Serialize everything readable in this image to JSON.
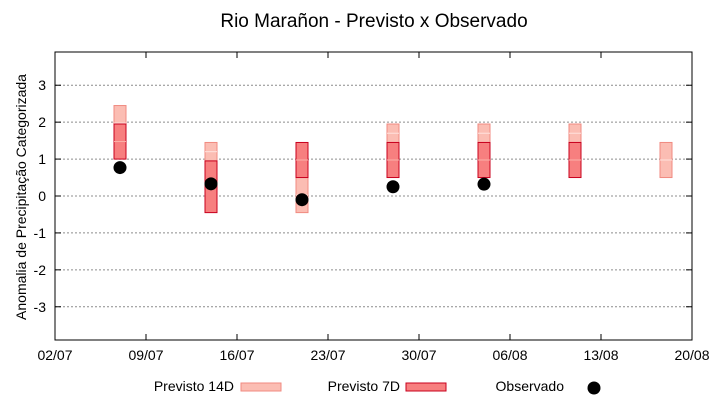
{
  "chart_data": {
    "type": "range-bar",
    "title": "Rio Marañon - Previsto x Observado",
    "xlabel": "",
    "ylabel": "Anomalia de Precipitação Categorizada",
    "ylim": [
      -3.9,
      3.9
    ],
    "yticks": [
      -3,
      -2,
      -1,
      0,
      1,
      2,
      3
    ],
    "xlim": [
      "2024-07-02",
      "2024-08-20"
    ],
    "xticks": [
      "02/07",
      "09/07",
      "16/07",
      "23/07",
      "30/07",
      "06/08",
      "13/08",
      "20/08"
    ],
    "grid": true,
    "legend_position": "bottom",
    "series": [
      {
        "name": "Previsto 14D",
        "kind": "range",
        "color": "#fbbdb3",
        "edge": "#f08a80",
        "points": [
          {
            "date": "2024-07-07",
            "low": 1.5,
            "high": 2.45
          },
          {
            "date": "2024-07-14",
            "low": 0.95,
            "high": 1.45
          },
          {
            "date": "2024-07-21",
            "low": -0.45,
            "high": 0.5
          },
          {
            "date": "2024-07-28",
            "low": 1.45,
            "high": 1.95
          },
          {
            "date": "2024-08-04",
            "low": 1.45,
            "high": 1.95
          },
          {
            "date": "2024-08-11",
            "low": 1.45,
            "high": 1.95
          },
          {
            "date": "2024-08-18",
            "low": 0.5,
            "high": 1.45
          }
        ]
      },
      {
        "name": "Previsto 7D",
        "kind": "range",
        "color": "#f77f7f",
        "edge": "#c8001e",
        "points": [
          {
            "date": "2024-07-07",
            "low": 1.0,
            "high": 1.95
          },
          {
            "date": "2024-07-14",
            "low": -0.45,
            "high": 0.95
          },
          {
            "date": "2024-07-21",
            "low": 0.5,
            "high": 1.45
          },
          {
            "date": "2024-07-28",
            "low": 0.5,
            "high": 1.45
          },
          {
            "date": "2024-08-04",
            "low": 0.5,
            "high": 1.45
          },
          {
            "date": "2024-08-11",
            "low": 0.5,
            "high": 1.45
          }
        ]
      },
      {
        "name": "Observado",
        "kind": "point",
        "color": "#000000",
        "points": [
          {
            "date": "2024-07-07",
            "value": 0.77
          },
          {
            "date": "2024-07-14",
            "value": 0.33
          },
          {
            "date": "2024-07-21",
            "value": -0.1
          },
          {
            "date": "2024-07-28",
            "value": 0.25
          },
          {
            "date": "2024-08-04",
            "value": 0.32
          }
        ]
      }
    ]
  }
}
